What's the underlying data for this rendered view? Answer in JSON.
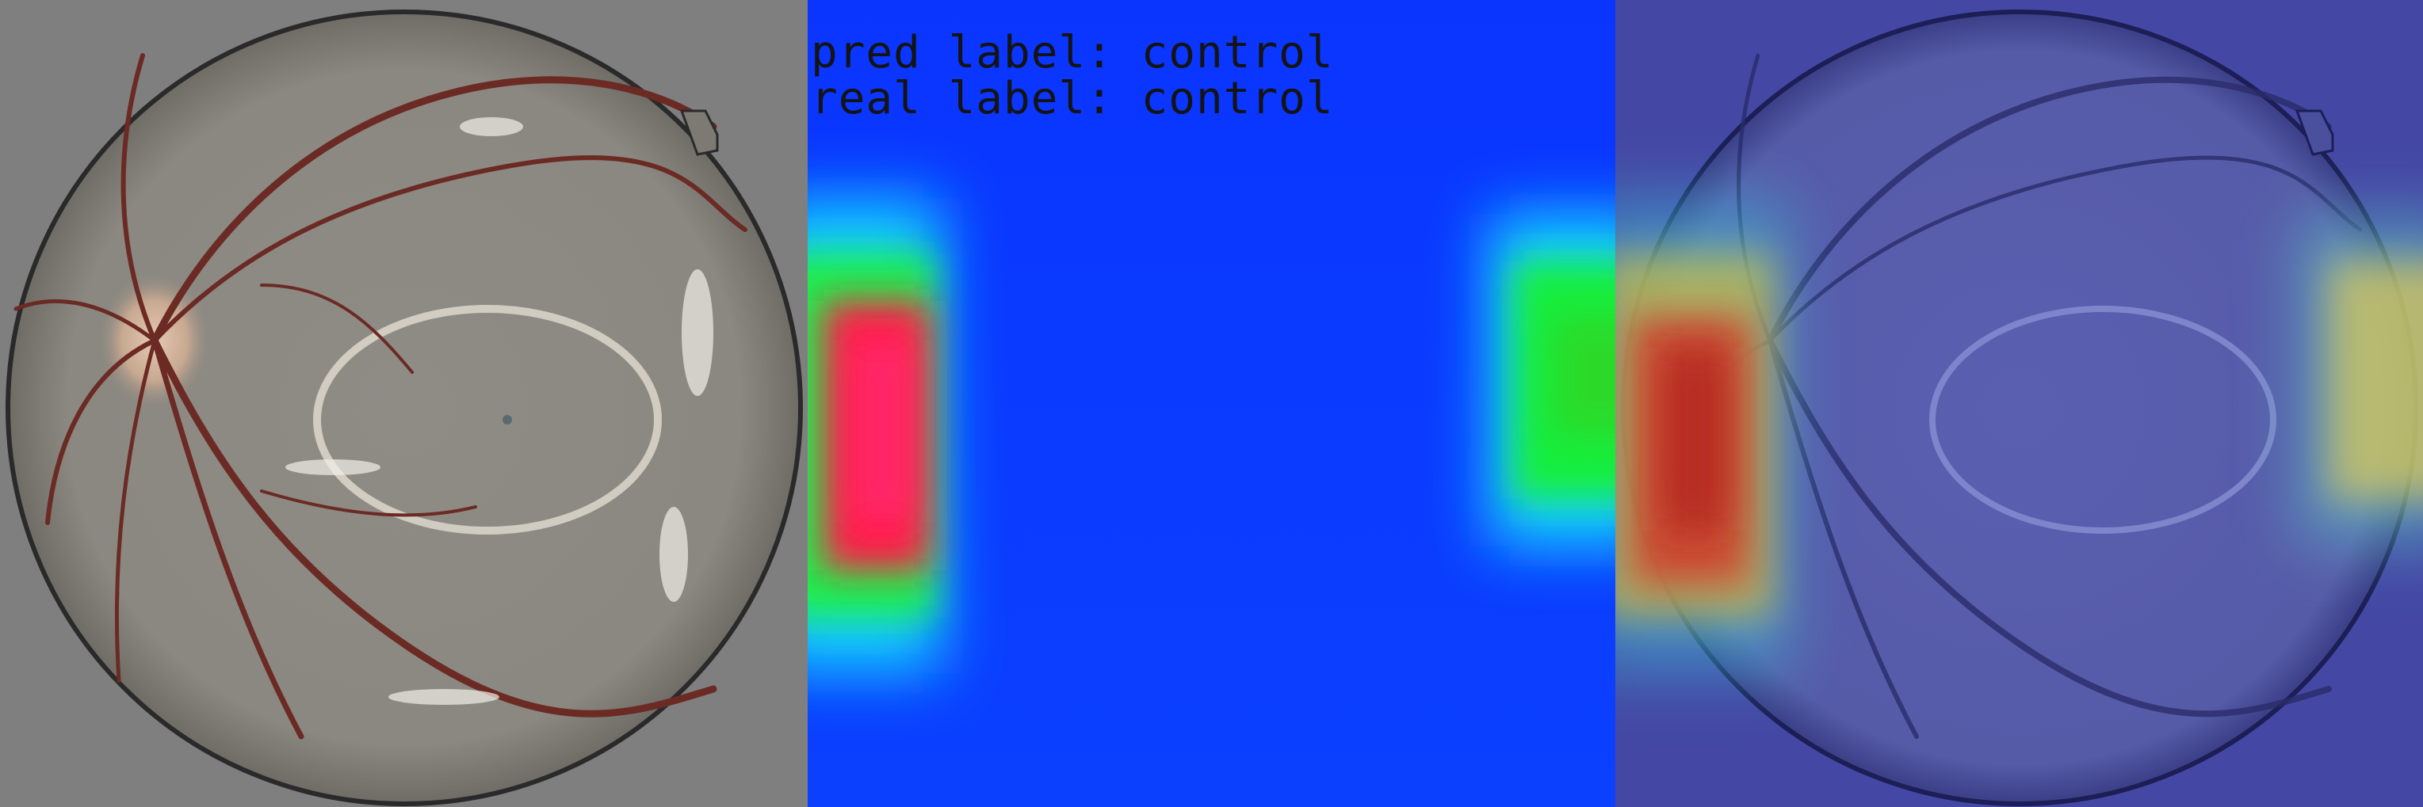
{
  "annotation": {
    "pred_label_text": "pred label: control",
    "real_label_text": "real label: control"
  },
  "panels": [
    {
      "name": "fundus",
      "content": "retinal fundus photograph"
    },
    {
      "name": "heatmap",
      "content": "class activation heatmap"
    },
    {
      "name": "overlay",
      "content": "heatmap overlaid on fundus"
    }
  ],
  "colors": {
    "heatmap_background": "#0a3aff",
    "fundus_background": "#7f7f7f",
    "overlay_background": "#454aa6",
    "label_text": "#141414",
    "hot": "#ff1a4a",
    "warm": "#16e63c",
    "cool": "#10e8ff"
  }
}
